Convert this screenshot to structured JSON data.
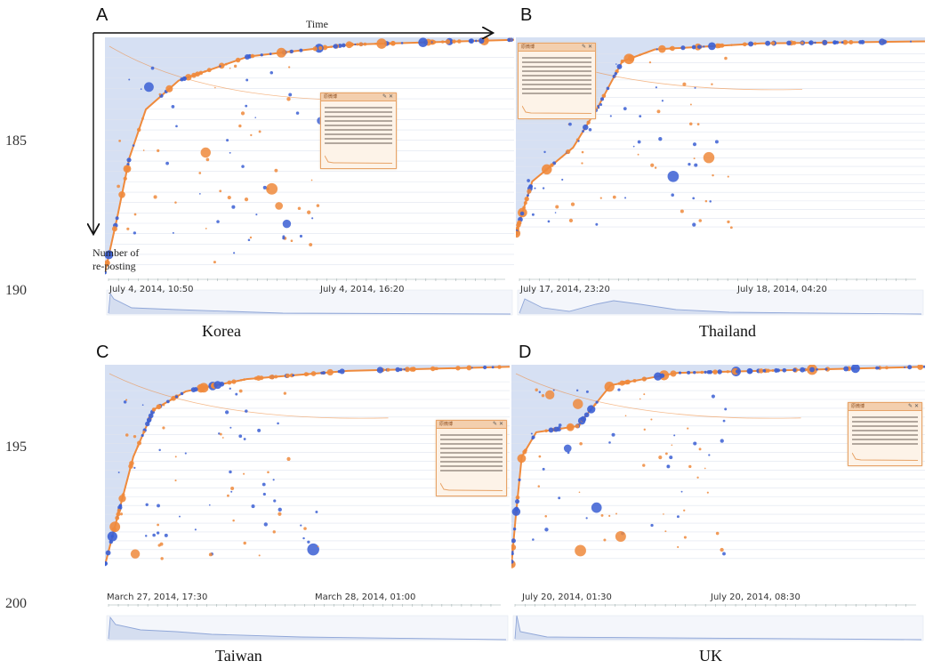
{
  "line_numbers": [
    "185",
    "190",
    "195",
    "200"
  ],
  "axis": {
    "time_label": "Time",
    "count_label_line1": "Number of",
    "count_label_line2": "re-posting"
  },
  "colors": {
    "blue": "#3b5fd4",
    "orange": "#ef8a3c",
    "shade": "#c8d5ef",
    "gridline": "#dfe4ef",
    "timeline": "#bccbe8"
  },
  "panels": [
    {
      "letter": "A",
      "country": "Korea",
      "start": "July 4, 2014, 10:50",
      "end": "July 4, 2014, 16:20"
    },
    {
      "letter": "B",
      "country": "Thailand",
      "start": "July 17, 2014, 23:20",
      "end": "July 18, 2014, 04:20"
    },
    {
      "letter": "C",
      "country": "Taiwan",
      "start": "March 27, 2014, 17:30",
      "end": "March 28, 2014, 01:00"
    },
    {
      "letter": "D",
      "country": "UK",
      "start": "July 20, 2014, 01:30",
      "end": "July 20, 2014, 08:30"
    }
  ]
}
